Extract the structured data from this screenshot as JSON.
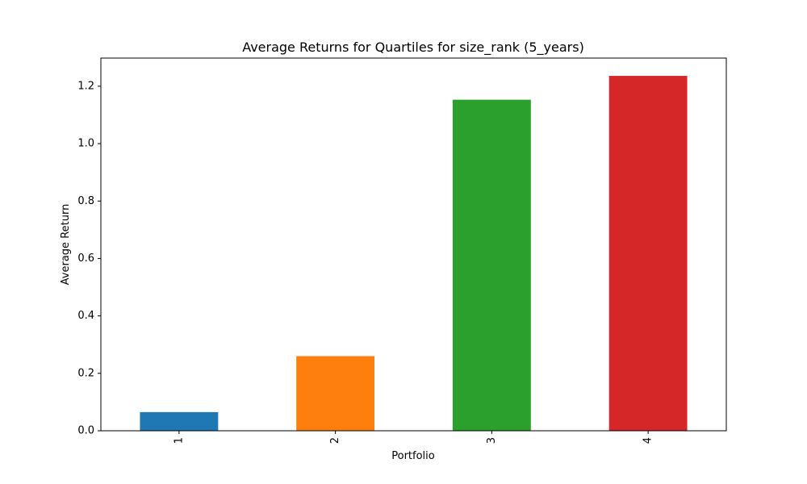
{
  "chart_data": {
    "type": "bar",
    "title": "Average Returns for Quartiles for size_rank (5_years)",
    "xlabel": "Portfolio",
    "ylabel": "Average Return",
    "categories": [
      "1",
      "2",
      "3",
      "4"
    ],
    "values": [
      0.065,
      0.26,
      1.153,
      1.236
    ],
    "bar_colors": [
      "#1f77b4",
      "#ff7f0e",
      "#2ca02c",
      "#d62728"
    ],
    "ylim": [
      0,
      1.298
    ],
    "yticks": [
      0.0,
      0.2,
      0.4,
      0.6,
      0.8,
      1.0,
      1.2
    ],
    "ytick_labels": [
      "0.0",
      "0.2",
      "0.4",
      "0.6",
      "0.8",
      "1.0",
      "1.2"
    ],
    "grid": false,
    "legend": "none"
  }
}
